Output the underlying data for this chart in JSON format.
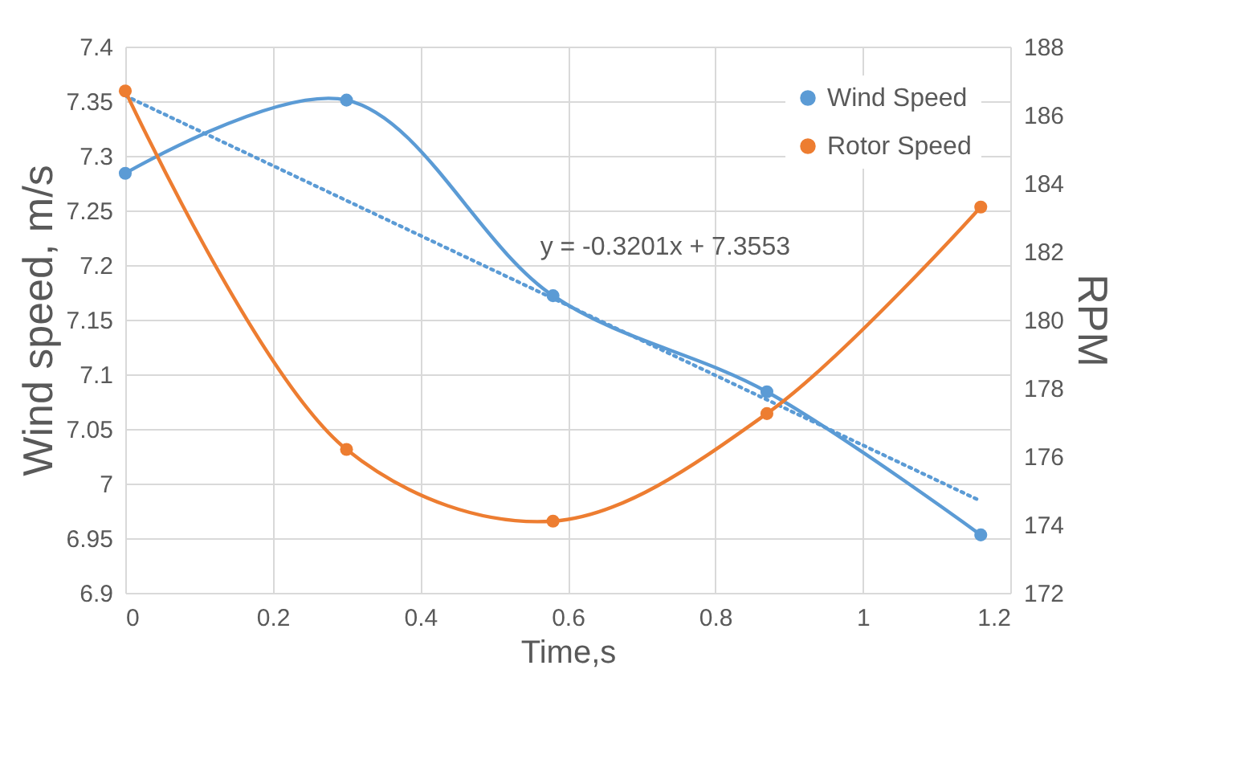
{
  "chart_data": {
    "type": "line",
    "xlabel": "Time,s",
    "ylabel": "Wind speed, m/s",
    "y2label": "RPM",
    "x": [
      0,
      0.3,
      0.58,
      0.87,
      1.16
    ],
    "series": [
      {
        "name": "Wind Speed",
        "color": "#5b9bd5",
        "values": [
          7.284,
          7.351,
          7.172,
          7.084,
          6.953
        ],
        "marker": "circle"
      },
      {
        "name": "Rotor Speed",
        "color": "#ed7d31",
        "axis": "y2",
        "values": [
          186.7,
          176.2,
          174.1,
          177.25,
          183.3
        ],
        "marker": "circle"
      },
      {
        "type": "line",
        "x": [
          0,
          1.16
        ],
        "values": [
          7.355,
          6.984
        ],
        "color": "#5b9bd5",
        "line_style": "dotted",
        "marker": "none"
      }
    ],
    "xlim": [
      0,
      1.2
    ],
    "xticks": [
      0,
      0.2,
      0.4,
      0.6,
      0.8,
      1,
      1.2
    ],
    "ylim": [
      6.9,
      7.4
    ],
    "yticks": [
      6.9,
      6.95,
      7,
      7.05,
      7.1,
      7.15,
      7.2,
      7.25,
      7.3,
      7.35,
      7.4
    ],
    "y2lim": [
      172,
      188
    ],
    "y2ticks": [
      172,
      174,
      176,
      178,
      180,
      182,
      184,
      186,
      188
    ],
    "annotations": [
      "y = -0.3201x + 7.3553"
    ],
    "grid": true,
    "legend": "top right"
  }
}
